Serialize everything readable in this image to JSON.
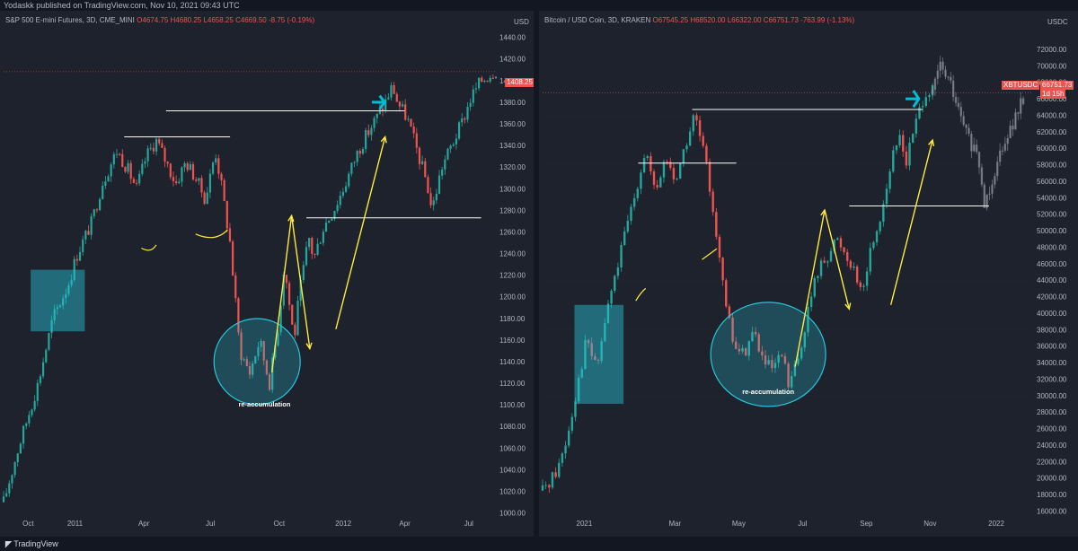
{
  "header": {
    "publisher": "Yodaskk published on TradingView.com, Nov 10, 2021 09:43 UTC"
  },
  "footer": {
    "brand": "TradingView"
  },
  "colors": {
    "up": "#26a69a",
    "down": "#ef5350",
    "ghost": "#9598a1",
    "annotation": "#ffeb3b",
    "box": "#26c6da",
    "arrow": "#00bcd4",
    "background": "#1e222d",
    "grid": "#2a2e39"
  },
  "chart_data": [
    {
      "type": "candlestick",
      "symbol": "S&P 500 E-mini Futures, 3D, CME_MINI",
      "ohlc": {
        "O": "O4674.75",
        "H": "H4680.25",
        "L": "L4658.25",
        "C": "C4669.50",
        "change": "-8.75 (-0.19%)"
      },
      "currency": "USD",
      "last_price_label": "1408.25",
      "y_ticks": [
        "1440.00",
        "1420.00",
        "1400.00",
        "1380.00",
        "1360.00",
        "1340.00",
        "1320.00",
        "1300.00",
        "1280.00",
        "1260.00",
        "1240.00",
        "1220.00",
        "1200.00",
        "1180.00",
        "1160.00",
        "1140.00",
        "1120.00",
        "1100.00",
        "1080.00",
        "1060.00",
        "1040.00",
        "1020.00",
        "1000.00"
      ],
      "ylim": [
        998,
        1448
      ],
      "x_ticks": [
        "Oct",
        "2011",
        "Apr",
        "Jul",
        "Oct",
        "2012",
        "Apr",
        "Jul"
      ],
      "x_tick_t": [
        0.05,
        0.145,
        0.285,
        0.42,
        0.56,
        0.69,
        0.815,
        0.945
      ],
      "price_path": [
        [
          0.0,
          1010
        ],
        [
          0.03,
          1060
        ],
        [
          0.07,
          1120
        ],
        [
          0.1,
          1180
        ],
        [
          0.13,
          1210
        ],
        [
          0.15,
          1240
        ],
        [
          0.18,
          1270
        ],
        [
          0.2,
          1305
        ],
        [
          0.23,
          1335
        ],
        [
          0.25,
          1320
        ],
        [
          0.27,
          1300
        ],
        [
          0.29,
          1330
        ],
        [
          0.31,
          1345
        ],
        [
          0.33,
          1325
        ],
        [
          0.35,
          1305
        ],
        [
          0.37,
          1325
        ],
        [
          0.39,
          1310
        ],
        [
          0.41,
          1290
        ],
        [
          0.43,
          1335
        ],
        [
          0.44,
          1310
        ],
        [
          0.46,
          1250
        ],
        [
          0.47,
          1200
        ],
        [
          0.48,
          1150
        ],
        [
          0.5,
          1130
        ],
        [
          0.52,
          1160
        ],
        [
          0.54,
          1120
        ],
        [
          0.56,
          1180
        ],
        [
          0.57,
          1230
        ],
        [
          0.58,
          1195
        ],
        [
          0.59,
          1160
        ],
        [
          0.6,
          1200
        ],
        [
          0.62,
          1255
        ],
        [
          0.63,
          1235
        ],
        [
          0.65,
          1265
        ],
        [
          0.67,
          1280
        ],
        [
          0.69,
          1300
        ],
        [
          0.72,
          1335
        ],
        [
          0.75,
          1360
        ],
        [
          0.77,
          1375
        ],
        [
          0.79,
          1395
        ],
        [
          0.8,
          1380
        ],
        [
          0.82,
          1365
        ],
        [
          0.84,
          1335
        ],
        [
          0.86,
          1305
        ],
        [
          0.87,
          1280
        ],
        [
          0.89,
          1320
        ],
        [
          0.91,
          1340
        ],
        [
          0.93,
          1360
        ],
        [
          0.95,
          1385
        ],
        [
          0.97,
          1400
        ],
        [
          1.0,
          1410
        ]
      ],
      "annotations": [
        "re-accumulation"
      ]
    },
    {
      "type": "candlestick",
      "symbol": "Bitcoin / USD Coin, 3D, KRAKEN",
      "ohlc": {
        "O": "O67545.25",
        "H": "H68520.00",
        "L": "L66322.00",
        "C": "C66751.73",
        "change": "-763.99 (-1.13%)"
      },
      "currency": "USDC",
      "last_price_label": "66751.73",
      "ticker_tag": "XBTUSDC",
      "countdown": "1d 15h",
      "y_ticks": [
        "72000.00",
        "70000.00",
        "68000.00",
        "66000.00",
        "64000.00",
        "62000.00",
        "60000.00",
        "58000.00",
        "56000.00",
        "54000.00",
        "52000.00",
        "50000.00",
        "48000.00",
        "46000.00",
        "44000.00",
        "42000.00",
        "40000.00",
        "38000.00",
        "36000.00",
        "34000.00",
        "32000.00",
        "30000.00",
        "28000.00",
        "26000.00",
        "24000.00",
        "22000.00",
        "20000.00",
        "18000.00",
        "16000.00"
      ],
      "ylim": [
        15500,
        74500
      ],
      "x_ticks": [
        "2021",
        "Mar",
        "May",
        "Jul",
        "Sep",
        "Nov",
        "2022"
      ],
      "x_tick_t": [
        0.085,
        0.27,
        0.4,
        0.53,
        0.66,
        0.79,
        0.925
      ],
      "price_path": [
        [
          0.0,
          18500
        ],
        [
          0.03,
          21000
        ],
        [
          0.05,
          25000
        ],
        [
          0.07,
          31000
        ],
        [
          0.09,
          37000
        ],
        [
          0.11,
          33000
        ],
        [
          0.13,
          40000
        ],
        [
          0.15,
          45000
        ],
        [
          0.17,
          50000
        ],
        [
          0.19,
          55000
        ],
        [
          0.21,
          60000
        ],
        [
          0.23,
          54000
        ],
        [
          0.25,
          59000
        ],
        [
          0.27,
          56000
        ],
        [
          0.29,
          60000
        ],
        [
          0.31,
          64000
        ],
        [
          0.33,
          59000
        ],
        [
          0.35,
          52000
        ],
        [
          0.37,
          42000
        ],
        [
          0.39,
          36000
        ],
        [
          0.41,
          35000
        ],
        [
          0.43,
          38000
        ],
        [
          0.45,
          34000
        ],
        [
          0.47,
          33000
        ],
        [
          0.49,
          35000
        ],
        [
          0.5,
          31000
        ],
        [
          0.52,
          34000
        ],
        [
          0.54,
          40000
        ],
        [
          0.56,
          45000
        ],
        [
          0.58,
          47000
        ],
        [
          0.6,
          49000
        ],
        [
          0.62,
          47000
        ],
        [
          0.64,
          45000
        ],
        [
          0.65,
          42000
        ],
        [
          0.67,
          48000
        ],
        [
          0.69,
          52000
        ],
        [
          0.71,
          58000
        ],
        [
          0.73,
          62000
        ],
        [
          0.74,
          58000
        ],
        [
          0.76,
          63000
        ],
        [
          0.78,
          67000
        ],
        [
          0.795,
          66750
        ]
      ],
      "ghost_path": [
        [
          0.795,
          66750
        ],
        [
          0.81,
          70000
        ],
        [
          0.83,
          68000
        ],
        [
          0.85,
          64000
        ],
        [
          0.87,
          61000
        ],
        [
          0.89,
          58000
        ],
        [
          0.9,
          53000
        ],
        [
          0.92,
          57000
        ],
        [
          0.94,
          61000
        ],
        [
          0.96,
          63000
        ],
        [
          0.98,
          66000
        ]
      ],
      "annotations": [
        "re-accumulation"
      ]
    }
  ]
}
